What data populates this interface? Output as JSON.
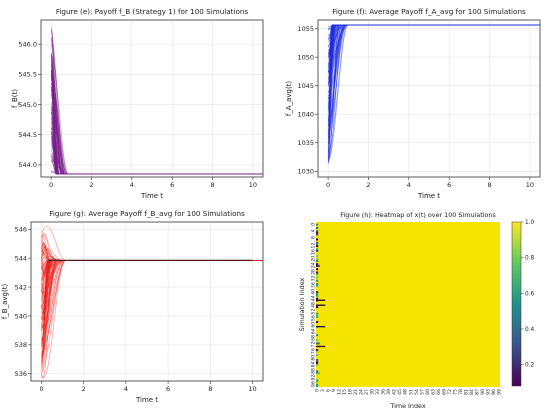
{
  "chart_data": [
    {
      "id": "e",
      "type": "line",
      "title": "Figure (e): Payoff f_B (Strategy 1) for 100 Simulations",
      "xlabel": "Time t",
      "ylabel": "f_B(t)",
      "xlim": [
        -0.5,
        10.5
      ],
      "ylim": [
        543.8,
        546.4
      ],
      "xticks": [
        0,
        2,
        4,
        6,
        8,
        10
      ],
      "yticks": [
        544.0,
        544.5,
        545.0,
        545.5,
        546.0
      ],
      "ytick_labels": [
        "544.0",
        "544.5",
        "545.0",
        "545.5",
        "546.0"
      ],
      "grid": true,
      "series_color": "#7a1f8a",
      "curves": {
        "count": 100,
        "start_min": 543.85,
        "start_max": 546.3,
        "steady": 543.85,
        "settle_x_min": 0.25,
        "settle_x_max": 0.85
      }
    },
    {
      "id": "f",
      "type": "line",
      "title": "Figure (f): Average Payoff f_A_avg for 100 Simulations",
      "xlabel": "Time t",
      "ylabel": "f_A_avg(t)",
      "xlim": [
        -0.5,
        10.5
      ],
      "ylim": [
        1029,
        1056.5
      ],
      "xticks": [
        0,
        2,
        4,
        6,
        8,
        10
      ],
      "yticks": [
        1030,
        1035,
        1040,
        1045,
        1050,
        1055
      ],
      "ytick_labels": [
        "1030",
        "1035",
        "1040",
        "1045",
        "1050",
        "1055"
      ],
      "grid": true,
      "series_color": "#1f2fe0",
      "curves": {
        "count": 100,
        "start_min": 1031,
        "start_max": 1055.5,
        "steady": 1055.6,
        "settle_x_min": 0.2,
        "settle_x_max": 1.0
      }
    },
    {
      "id": "g",
      "type": "line",
      "title": "Figure (g): Average Payoff f_B_avg for 100 Simulations",
      "xlabel": "Time t",
      "ylabel": "f_B_avg(t)",
      "xlim": [
        -0.5,
        10.5
      ],
      "ylim": [
        535.5,
        546.5
      ],
      "xticks": [
        0,
        2,
        4,
        6,
        8,
        10
      ],
      "yticks": [
        536,
        538,
        540,
        542,
        544,
        546
      ],
      "ytick_labels": [
        "536",
        "538",
        "540",
        "542",
        "544",
        "546"
      ],
      "grid": true,
      "series_color": "#e8221a",
      "curves": {
        "count": 100,
        "start_min": 535.8,
        "start_max": 545.8,
        "steady": 543.85,
        "settle_x_min": 0.3,
        "settle_x_max": 1.2
      },
      "mean_line_color": "#2a1a1a"
    },
    {
      "id": "h",
      "type": "heatmap",
      "title": "Figure (h): Heatmap of x(t) over 100 Simulations",
      "xlabel": "Time Index",
      "ylabel": "Simulation Index",
      "x_ticks": [
        "0",
        "3",
        "6",
        "9",
        "12",
        "15",
        "18",
        "21",
        "24",
        "27",
        "30",
        "33",
        "36",
        "39",
        "42",
        "45",
        "48",
        "51",
        "54",
        "57",
        "60",
        "63",
        "66",
        "69",
        "72",
        "75",
        "78",
        "81",
        "84",
        "87",
        "90",
        "93",
        "96",
        "99"
      ],
      "y_ticks": [
        "0",
        "4",
        "8",
        "12",
        "16",
        "20",
        "24",
        "28",
        "32",
        "36",
        "40",
        "44",
        "48",
        "52",
        "56",
        "60",
        "64",
        "68",
        "72",
        "76",
        "80",
        "84",
        "88",
        "92",
        "96"
      ],
      "fill_color": "#f5e300",
      "colorbar": {
        "ticks": [
          "0.2",
          "0.4",
          "0.6",
          "0.8",
          "1.0"
        ],
        "values": [
          0.2,
          0.4,
          0.6,
          0.8,
          1.0
        ],
        "range": [
          0.08,
          1.0
        ]
      },
      "value_range": [
        0.08,
        1.0
      ],
      "dominant_value": 1.0,
      "early_column_low_values": true
    }
  ]
}
